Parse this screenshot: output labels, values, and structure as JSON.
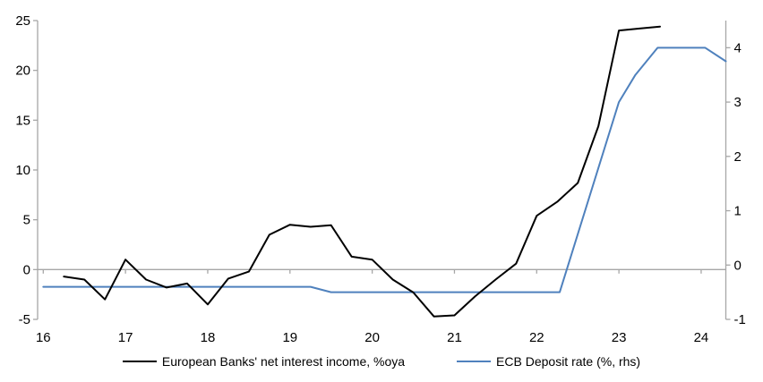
{
  "chart_data": {
    "type": "line",
    "title": "",
    "grid": false,
    "legend_position": "bottom-center",
    "background_color": "#ffffff",
    "axis_color": "#a6a6a6",
    "zero_line": true,
    "x_axis": {
      "range": [
        16,
        24.3
      ],
      "ticks": [
        16,
        17,
        18,
        19,
        20,
        21,
        22,
        23,
        24
      ],
      "label": ""
    },
    "left_axis": {
      "range": [
        -5,
        25
      ],
      "ticks": [
        25,
        20,
        15,
        10,
        5,
        0,
        -5
      ],
      "label": ""
    },
    "right_axis": {
      "range": [
        -1,
        4.5
      ],
      "ticks": [
        4,
        3,
        2,
        1,
        0,
        -1
      ],
      "label": ""
    },
    "series": [
      {
        "name": "European Banks' net interest income, %oya",
        "color": "#000000",
        "width": 2,
        "axis": "left",
        "x": [
          16.25,
          16.5,
          16.75,
          17.0,
          17.25,
          17.5,
          17.75,
          18.0,
          18.25,
          18.5,
          18.75,
          19.0,
          19.25,
          19.5,
          19.75,
          20.0,
          20.25,
          20.5,
          20.75,
          21.0,
          21.25,
          21.5,
          21.75,
          22.0,
          22.25,
          22.5,
          22.75,
          23.0,
          23.25,
          23.5
        ],
        "values": [
          -0.7,
          -1.0,
          -3.0,
          1.0,
          -1.0,
          -1.8,
          -1.4,
          -3.5,
          -0.9,
          -0.2,
          3.5,
          4.5,
          4.3,
          4.45,
          1.3,
          1.0,
          -1.0,
          -2.3,
          -4.7,
          -4.6,
          -2.7,
          -1.0,
          0.6,
          5.4,
          6.8,
          8.7,
          14.4,
          24.0,
          24.2,
          24.4
        ]
      },
      {
        "name": "ECB Deposit rate (%, rhs)",
        "color": "#4f81bd",
        "width": 2,
        "axis": "right",
        "x": [
          16.0,
          19.25,
          19.5,
          22.28,
          23.0,
          23.2,
          23.47,
          24.05,
          24.3
        ],
        "values": [
          -0.4,
          -0.4,
          -0.5,
          -0.5,
          3.0,
          3.5,
          4.0,
          4.0,
          3.75
        ]
      }
    ]
  }
}
